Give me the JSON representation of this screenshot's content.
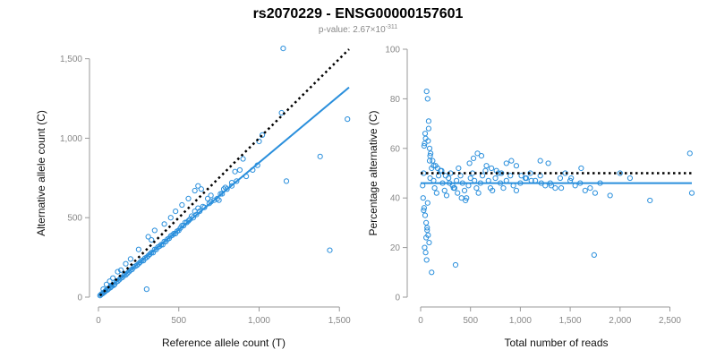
{
  "figure": {
    "title": "rs2070229 - ENSG00000157601",
    "subtitle_prefix": "p-value: 2.67×10",
    "subtitle_exponent": "-311",
    "colors": {
      "points": "#2a8fdc",
      "fit": "#2a8fdc",
      "reference": "#000000"
    }
  },
  "chart_data": [
    {
      "type": "scatter",
      "title": "",
      "xlabel": "Reference allele count (T)",
      "ylabel": "Alternative allele count (C)",
      "xlim": [
        0,
        1560
      ],
      "ylim": [
        0,
        1560
      ],
      "xticks": [
        0,
        500,
        1000,
        1500
      ],
      "xtick_labels": [
        "0",
        "500",
        "1,000",
        "1,500"
      ],
      "yticks": [
        0,
        500,
        1000,
        1500
      ],
      "ytick_labels": [
        "0",
        "500",
        "1,000",
        "1,500"
      ],
      "grid": false,
      "series": [
        {
          "kind": "points",
          "x": [
            1150,
            1550,
            1380,
            1440,
            1170,
            1020,
            1140,
            1000,
            900,
            880,
            850,
            830,
            790,
            780,
            760,
            700,
            680,
            650,
            620,
            600,
            580,
            560,
            540,
            520,
            500,
            480,
            460,
            440,
            420,
            400,
            380,
            360,
            340,
            320,
            300,
            280,
            260,
            240,
            220,
            200,
            180,
            160,
            140,
            120,
            100,
            80,
            60,
            40,
            20,
            10,
            15,
            25,
            35,
            45,
            55,
            65,
            75,
            85,
            95,
            110,
            130,
            150,
            170,
            190,
            210,
            230,
            250,
            270,
            290,
            310,
            330,
            350,
            370,
            390,
            410,
            430,
            450,
            470,
            490,
            510,
            530,
            550,
            570,
            590,
            610,
            630,
            660,
            690,
            720,
            740,
            770,
            800,
            830,
            860,
            920,
            960,
            990,
            560,
            600,
            640,
            700,
            750,
            450,
            480,
            410,
            330,
            300,
            250,
            200,
            170,
            140,
            120,
            90,
            70,
            50,
            30,
            620,
            520,
            350,
            310
          ],
          "y": [
            1565,
            1120,
            885,
            295,
            730,
            1020,
            1160,
            980,
            870,
            800,
            790,
            720,
            690,
            680,
            650,
            600,
            620,
            570,
            560,
            540,
            510,
            480,
            470,
            450,
            420,
            400,
            390,
            370,
            350,
            330,
            320,
            300,
            280,
            270,
            250,
            230,
            220,
            200,
            190,
            170,
            150,
            140,
            120,
            100,
            80,
            70,
            50,
            35,
            20,
            10,
            15,
            22,
            30,
            40,
            45,
            55,
            60,
            70,
            75,
            95,
            110,
            125,
            140,
            160,
            175,
            195,
            210,
            230,
            245,
            260,
            280,
            300,
            315,
            330,
            350,
            365,
            385,
            400,
            415,
            435,
            450,
            470,
            490,
            500,
            520,
            540,
            565,
            590,
            610,
            620,
            650,
            680,
            700,
            730,
            760,
            800,
            830,
            620,
            670,
            680,
            640,
            610,
            500,
            540,
            460,
            360,
            50,
            300,
            240,
            210,
            170,
            160,
            120,
            100,
            80,
            50,
            700,
            580,
            420,
            380
          ]
        },
        {
          "kind": "fit",
          "x": [
            10,
            1560
          ],
          "y": [
            10,
            1320
          ]
        },
        {
          "kind": "reference",
          "x": [
            10,
            1560
          ],
          "y": [
            10,
            1560
          ]
        }
      ]
    },
    {
      "type": "scatter",
      "title": "",
      "xlabel": "Total number of reads",
      "ylabel": "Percentage alternative (C)",
      "xlim": [
        0,
        2720
      ],
      "ylim": [
        0,
        100
      ],
      "xticks": [
        0,
        500,
        1000,
        1500,
        2000,
        2500
      ],
      "xtick_labels": [
        "0",
        "500",
        "1,000",
        "1,500",
        "2,000",
        "2,500"
      ],
      "yticks": [
        0,
        20,
        40,
        60,
        80,
        100
      ],
      "ytick_labels": [
        "0",
        "20",
        "40",
        "60",
        "80",
        "100"
      ],
      "grid": false,
      "series": [
        {
          "kind": "points",
          "x": [
            60,
            70,
            80,
            50,
            40,
            90,
            100,
            120,
            150,
            30,
            20,
            25,
            35,
            45,
            55,
            65,
            75,
            85,
            95,
            110,
            130,
            140,
            160,
            180,
            200,
            220,
            240,
            260,
            280,
            300,
            320,
            340,
            360,
            380,
            400,
            420,
            440,
            460,
            480,
            500,
            520,
            540,
            560,
            580,
            600,
            620,
            650,
            680,
            700,
            720,
            750,
            780,
            800,
            830,
            860,
            900,
            930,
            960,
            1000,
            1050,
            1100,
            1150,
            1200,
            1250,
            1300,
            1350,
            1400,
            1450,
            1500,
            1550,
            1600,
            1650,
            1700,
            1750,
            1800,
            1900,
            2000,
            2100,
            2300,
            2700,
            2720,
            1740,
            350,
            110,
            60,
            50,
            40,
            55,
            65,
            30,
            70,
            90,
            130,
            170,
            210,
            250,
            290,
            330,
            370,
            410,
            450,
            490,
            530,
            570,
            610,
            660,
            710,
            760,
            810,
            860,
            910,
            960,
            1010,
            1060,
            1110,
            1210,
            1310,
            1410,
            1510,
            1610,
            80,
            45,
            35,
            75,
            95,
            1200,
            1280
          ],
          "y": [
            83,
            80,
            71,
            64,
            62,
            60,
            58,
            55,
            53,
            50,
            45,
            40,
            36,
            33,
            30,
            27,
            25,
            22,
            48,
            52,
            47,
            44,
            42,
            49,
            51,
            46,
            43,
            41,
            48,
            50,
            45,
            44,
            47,
            52,
            49,
            46,
            43,
            40,
            45,
            48,
            50,
            47,
            44,
            42,
            46,
            49,
            51,
            47,
            44,
            43,
            48,
            50,
            46,
            44,
            47,
            49,
            45,
            43,
            46,
            48,
            50,
            47,
            49,
            45,
            46,
            44,
            48,
            50,
            47,
            45,
            46,
            43,
            44,
            42,
            46,
            41,
            50,
            48,
            39,
            58,
            42,
            17,
            13,
            10,
            15,
            18,
            20,
            24,
            28,
            35,
            38,
            55,
            53,
            52,
            51,
            49,
            46,
            44,
            42,
            40,
            39,
            54,
            56,
            58,
            57,
            53,
            52,
            51,
            50,
            54,
            55,
            53,
            49,
            48,
            47,
            46,
            45,
            44,
            48,
            52,
            68,
            66,
            61,
            63,
            57,
            55,
            54
          ]
        },
        {
          "kind": "fit",
          "x": [
            0,
            2720
          ],
          "y": [
            46,
            46
          ]
        },
        {
          "kind": "reference",
          "x": [
            0,
            2720
          ],
          "y": [
            50,
            50
          ]
        }
      ]
    }
  ]
}
